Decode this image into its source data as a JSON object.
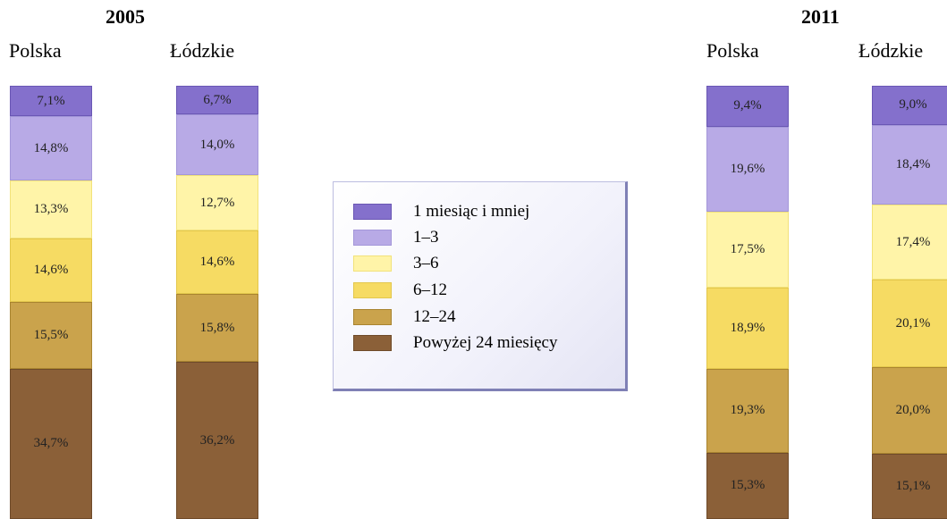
{
  "chart_data": {
    "type": "bar",
    "stacked": true,
    "percent_stacked": true,
    "legend_position": "center",
    "series": [
      {
        "name": "1 miesiąc i mniej",
        "color": "#8470cc"
      },
      {
        "name": "1–3",
        "color": "#b8aae6"
      },
      {
        "name": "3–6",
        "color": "#fff4a8"
      },
      {
        "name": "6–12",
        "color": "#f6db63"
      },
      {
        "name": "12–24",
        "color": "#caa34c"
      },
      {
        "name": "Powyżej 24 miesięcy",
        "color": "#8b6038"
      }
    ],
    "groups": [
      {
        "year": "2005",
        "bars": [
          {
            "label": "Polska",
            "values": [
              7.1,
              14.8,
              13.3,
              14.6,
              15.5,
              34.7
            ],
            "value_labels": [
              "7,1%",
              "14,8%",
              "13,3%",
              "14,6%",
              "15,5%",
              "34,7%"
            ]
          },
          {
            "label": "Łódzkie",
            "values": [
              6.7,
              14.0,
              12.7,
              14.6,
              15.8,
              36.2
            ],
            "value_labels": [
              "6,7%",
              "14,0%",
              "12,7%",
              "14,6%",
              "15,8%",
              "36,2%"
            ]
          }
        ]
      },
      {
        "year": "2011",
        "bars": [
          {
            "label": "Polska",
            "values": [
              9.4,
              19.6,
              17.5,
              18.9,
              19.3,
              15.3
            ],
            "value_labels": [
              "9,4%",
              "19,6%",
              "17,5%",
              "18,9%",
              "19,3%",
              "15,3%"
            ]
          },
          {
            "label": "Łódzkie",
            "values": [
              9.0,
              18.4,
              17.4,
              20.1,
              20.0,
              15.1
            ],
            "value_labels": [
              "9,0%",
              "18,4%",
              "17,4%",
              "20,1%",
              "20,0%",
              "15,1%"
            ]
          }
        ]
      }
    ]
  }
}
